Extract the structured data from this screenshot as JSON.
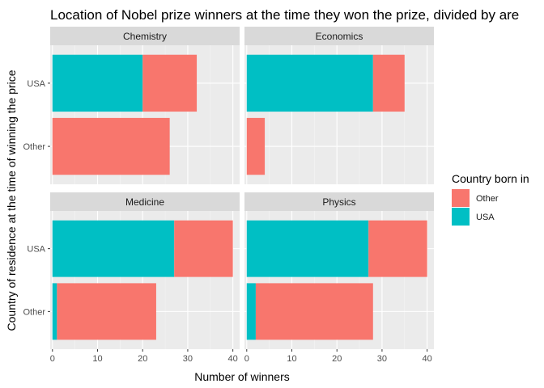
{
  "chart_data": {
    "type": "bar",
    "orientation": "horizontal",
    "stacked": true,
    "title": "Location of Nobel prize winners at the time they won the prize, divided by are",
    "xlabel": "Number of winners",
    "ylabel": "Country of residence at the time of winning the price",
    "xlim": [
      -0.5,
      41.5
    ],
    "xticks": [
      "0",
      "10",
      "20",
      "30",
      "40"
    ],
    "categories": [
      "USA",
      "Other"
    ],
    "legend": {
      "title": "Country born in",
      "position": "right",
      "entries": [
        {
          "name": "Other",
          "color": "#F8766D"
        },
        {
          "name": "USA",
          "color": "#00BFC4"
        }
      ]
    },
    "grid": true,
    "facets": [
      {
        "label": "Chemistry",
        "bars": [
          {
            "category": "USA",
            "USA": 20,
            "Other": 12
          },
          {
            "category": "Other",
            "USA": 0,
            "Other": 26
          }
        ]
      },
      {
        "label": "Economics",
        "bars": [
          {
            "category": "USA",
            "USA": 28,
            "Other": 7
          },
          {
            "category": "Other",
            "USA": 0,
            "Other": 4
          }
        ]
      },
      {
        "label": "Medicine",
        "bars": [
          {
            "category": "USA",
            "USA": 27,
            "Other": 13
          },
          {
            "category": "Other",
            "USA": 1,
            "Other": 22
          }
        ]
      },
      {
        "label": "Physics",
        "bars": [
          {
            "category": "USA",
            "USA": 27,
            "Other": 13
          },
          {
            "category": "Other",
            "USA": 2,
            "Other": 26
          }
        ]
      }
    ]
  }
}
